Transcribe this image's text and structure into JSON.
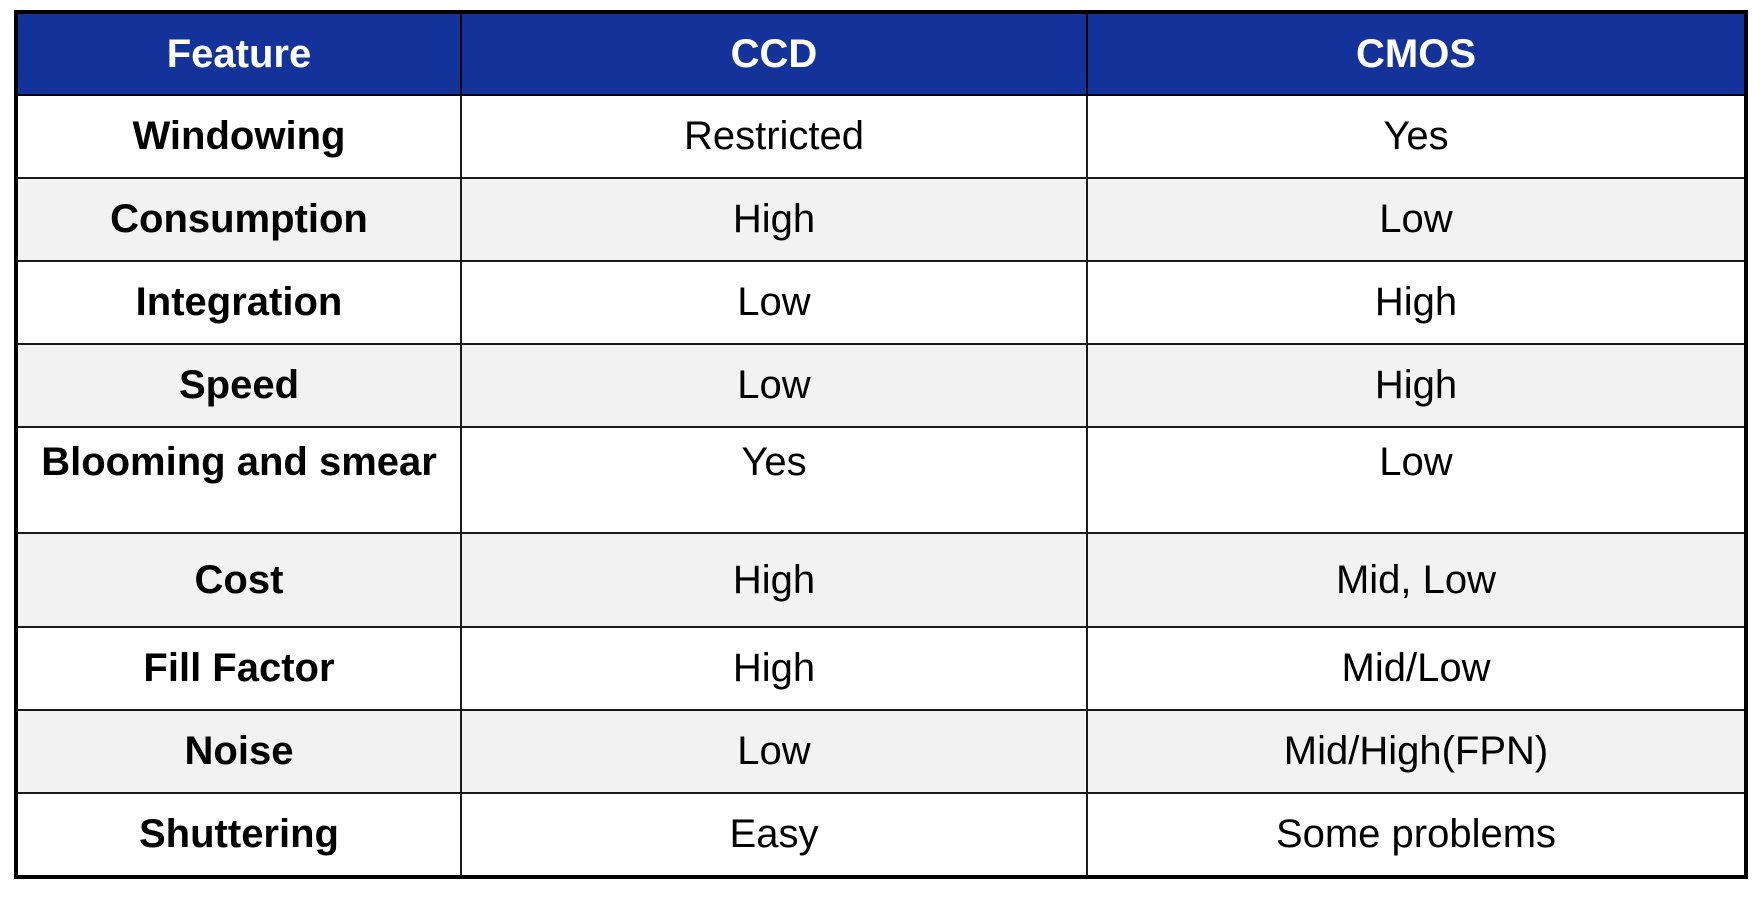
{
  "table": {
    "headers": [
      "Feature",
      "CCD",
      "CMOS"
    ],
    "rows": [
      [
        "Windowing",
        "Restricted",
        "Yes"
      ],
      [
        "Consumption",
        "High",
        "Low"
      ],
      [
        "Integration",
        "Low",
        "High"
      ],
      [
        "Speed",
        "Low",
        "High"
      ],
      [
        "Blooming and smear",
        "Yes",
        "Low"
      ],
      [
        "Cost",
        "High",
        "Mid, Low"
      ],
      [
        "Fill Factor",
        "High",
        "Mid/Low"
      ],
      [
        "Noise",
        "Low",
        "Mid/High(FPN)"
      ],
      [
        "Shuttering",
        "Easy",
        "Some problems"
      ]
    ]
  },
  "colors": {
    "header_background": "#14339a",
    "header_text": "#ffffff",
    "alt_row_background": "#f2f2f2",
    "border": "#000000"
  }
}
